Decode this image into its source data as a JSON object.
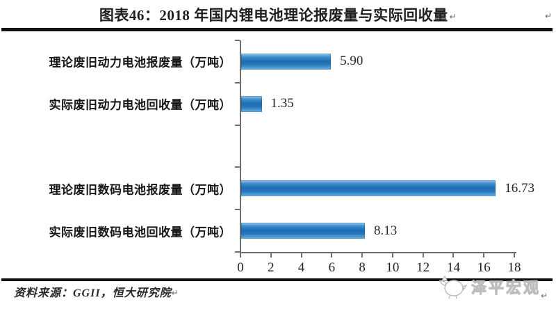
{
  "title": {
    "text": "图表46：2018 年国内锂电池理论报废量与实际回收量",
    "paragraph_mark": "↵"
  },
  "footer": {
    "source": "资料来源：GGII，恒大研究院",
    "paragraph_mark": "↵"
  },
  "watermark": {
    "text": "泽平宏观"
  },
  "chart_data": {
    "type": "bar",
    "orientation": "horizontal",
    "title": "图表46：2018 年国内锂电池理论报废量与实际回收量",
    "categories": [
      "理论废旧动力电池报废量（万吨）",
      "实际废旧动力电池回收量（万吨）",
      "",
      "理论废旧数码电池报废量（万吨）",
      "实际废旧数码电池回收量（万吨）"
    ],
    "values": [
      5.9,
      1.35,
      null,
      16.73,
      8.13
    ],
    "value_labels": [
      "5.90",
      "1.35",
      "",
      "16.73",
      "8.13"
    ],
    "unit": "万吨",
    "xlim": [
      0,
      18
    ],
    "x_ticks": [
      0,
      2,
      4,
      6,
      8,
      10,
      12,
      14,
      16,
      18
    ],
    "grid": false,
    "legend": "none",
    "bar_color_mid": "#1c6cb3",
    "bar_color_light": "#9ccaee",
    "axis_color": "#6e6e6e"
  }
}
